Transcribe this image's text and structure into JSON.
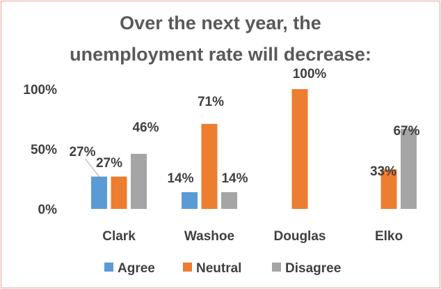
{
  "chart_data": {
    "type": "bar",
    "title_lines": [
      "Over the next year, the",
      "unemployment rate will decrease:"
    ],
    "categories": [
      "Clark",
      "Washoe",
      "Douglas",
      "Elko"
    ],
    "series": [
      {
        "name": "Agree",
        "color": "#5b9bd5",
        "values": [
          27,
          14,
          0,
          0
        ],
        "labels": [
          "27%",
          "14%",
          "",
          ""
        ]
      },
      {
        "name": "Neutral",
        "color": "#ed7d31",
        "values": [
          27,
          71,
          100,
          33
        ],
        "labels": [
          "27%",
          "71%",
          "100%",
          "33%"
        ]
      },
      {
        "name": "Disagree",
        "color": "#a5a5a5",
        "values": [
          46,
          14,
          0,
          67
        ],
        "labels": [
          "46%",
          "14%",
          "",
          "67%"
        ]
      }
    ],
    "ylim": [
      0,
      100
    ],
    "yticks": [
      0,
      50,
      100
    ],
    "ytick_labels": [
      "0%",
      "50%",
      "100%"
    ],
    "legend_position": "bottom",
    "grid": false
  }
}
